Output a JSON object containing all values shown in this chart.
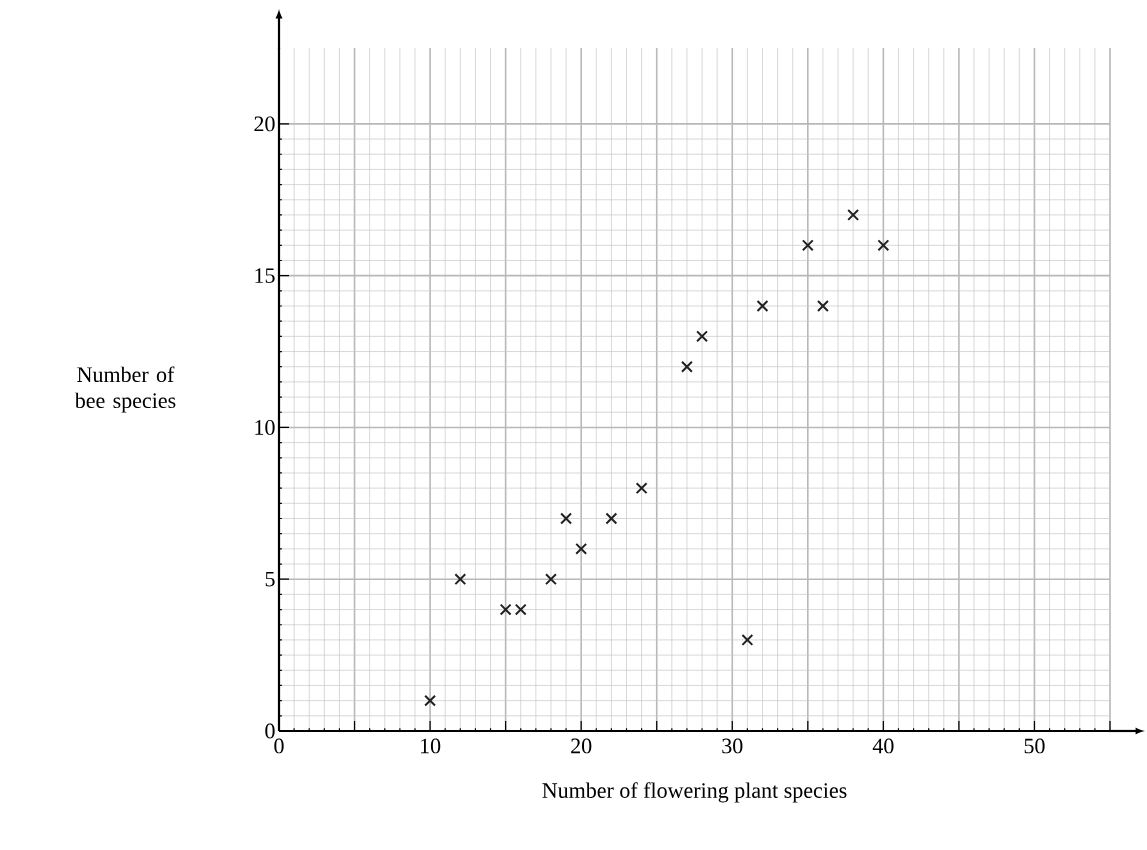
{
  "chart_data": {
    "type": "scatter",
    "xlabel": "Number of flowering plant species",
    "ylabel": "Number of bee species",
    "x": [
      10,
      12,
      15,
      16,
      18,
      19,
      20,
      22,
      24,
      27,
      28,
      31,
      32,
      35,
      36,
      38,
      40
    ],
    "values": [
      1,
      5,
      4,
      4,
      5,
      7,
      6,
      7,
      8,
      12,
      13,
      3,
      14,
      16,
      14,
      17,
      16
    ],
    "color": "#231f20",
    "marker": "cross",
    "xlim": [
      0,
      55
    ],
    "ylim": [
      0,
      22.5
    ],
    "xticks": [
      0,
      {
        "value": 5,
        "label": null
      },
      10,
      {
        "value": 15,
        "label": null
      },
      20,
      {
        "value": 25,
        "label": null
      },
      30,
      {
        "value": 35,
        "label": null
      },
      40,
      {
        "value": 45,
        "label": null
      },
      50,
      {
        "value": 55,
        "label": null
      }
    ],
    "yticks": [
      0,
      5,
      10,
      15,
      20
    ],
    "grid": true
  }
}
